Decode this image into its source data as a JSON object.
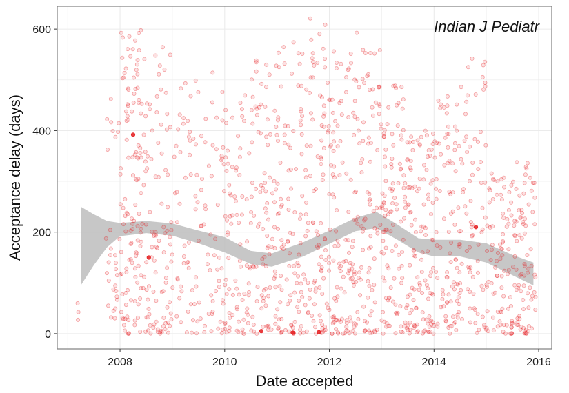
{
  "chart_data": {
    "type": "scatter",
    "title": "",
    "annotation": "Indian J Pediatr",
    "xlabel": "Date accepted",
    "ylabel": "Acceptance delay (days)",
    "xlim": [
      2006.8,
      2016.25
    ],
    "ylim": [
      -30,
      645
    ],
    "x_ticks": [
      2008,
      2010,
      2012,
      2014,
      2016
    ],
    "y_ticks": [
      0,
      200,
      400,
      600
    ],
    "grid": true,
    "legend": "none",
    "colors": {
      "points": "#e41a1c",
      "smooth_band": "#bdbdbd",
      "grid": "#ebebeb",
      "panel_border": "#7f7f7f"
    },
    "smooth": {
      "x": [
        2007.25,
        2007.5,
        2007.75,
        2008.0,
        2008.5,
        2009.0,
        2009.5,
        2010.0,
        2010.5,
        2010.9,
        2011.5,
        2012.0,
        2012.5,
        2012.9,
        2013.3,
        2013.7,
        2014.0,
        2014.5,
        2015.0,
        2015.5,
        2015.9
      ],
      "y": [
        175,
        185,
        195,
        205,
        210,
        205,
        190,
        175,
        150,
        145,
        165,
        190,
        215,
        225,
        200,
        175,
        170,
        170,
        160,
        135,
        115
      ],
      "lower": [
        95,
        135,
        170,
        192,
        198,
        193,
        178,
        160,
        137,
        132,
        152,
        177,
        202,
        208,
        185,
        160,
        152,
        152,
        140,
        115,
        95
      ],
      "upper": [
        250,
        235,
        222,
        218,
        222,
        217,
        203,
        190,
        163,
        158,
        180,
        203,
        228,
        240,
        215,
        188,
        185,
        185,
        178,
        155,
        140
      ]
    },
    "highlight_points": [
      {
        "x": 2008.25,
        "y": 392
      },
      {
        "x": 2011.3,
        "y": 2
      },
      {
        "x": 2010.7,
        "y": 5
      },
      {
        "x": 2011.8,
        "y": 3
      },
      {
        "x": 2008.55,
        "y": 150
      },
      {
        "x": 2014.8,
        "y": 210
      }
    ],
    "point_clusters": [
      {
        "x_range": [
          2007.0,
          2007.3
        ],
        "y_range": [
          20,
          60
        ],
        "count": 3
      },
      {
        "x_range": [
          2007.7,
          2008.0
        ],
        "y_range": [
          30,
          500
        ],
        "count": 30
      },
      {
        "x_range": [
          2008.0,
          2008.5
        ],
        "y_range": [
          0,
          600
        ],
        "count": 130
      },
      {
        "x_range": [
          2008.5,
          2009.0
        ],
        "y_range": [
          0,
          580
        ],
        "count": 90
      },
      {
        "x_range": [
          2009.0,
          2009.5
        ],
        "y_range": [
          0,
          500
        ],
        "count": 55
      },
      {
        "x_range": [
          2009.5,
          2010.0
        ],
        "y_range": [
          0,
          540
        ],
        "count": 55
      },
      {
        "x_range": [
          2010.0,
          2010.5
        ],
        "y_range": [
          0,
          500
        ],
        "count": 80
      },
      {
        "x_range": [
          2010.5,
          2011.0
        ],
        "y_range": [
          0,
          560
        ],
        "count": 95
      },
      {
        "x_range": [
          2011.0,
          2011.5
        ],
        "y_range": [
          0,
          600
        ],
        "count": 100
      },
      {
        "x_range": [
          2011.5,
          2012.0
        ],
        "y_range": [
          0,
          625
        ],
        "count": 105
      },
      {
        "x_range": [
          2012.0,
          2012.5
        ],
        "y_range": [
          0,
          560
        ],
        "count": 110
      },
      {
        "x_range": [
          2012.5,
          2013.0
        ],
        "y_range": [
          0,
          605
        ],
        "count": 95
      },
      {
        "x_range": [
          2013.0,
          2013.5
        ],
        "y_range": [
          0,
          490
        ],
        "count": 115
      },
      {
        "x_range": [
          2013.5,
          2014.0
        ],
        "y_range": [
          0,
          400
        ],
        "count": 110
      },
      {
        "x_range": [
          2014.0,
          2014.5
        ],
        "y_range": [
          0,
          470
        ],
        "count": 95
      },
      {
        "x_range": [
          2014.5,
          2015.0
        ],
        "y_range": [
          0,
          560
        ],
        "count": 75
      },
      {
        "x_range": [
          2015.0,
          2015.5
        ],
        "y_range": [
          0,
          320
        ],
        "count": 85
      },
      {
        "x_range": [
          2015.5,
          2015.95
        ],
        "y_range": [
          0,
          340
        ],
        "count": 85
      }
    ]
  }
}
